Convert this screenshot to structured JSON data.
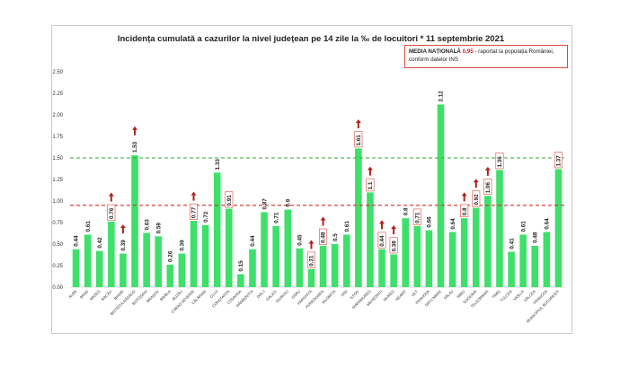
{
  "chart_data": {
    "type": "bar",
    "title": "Incidența cumulată a cazurilor la nivel județean pe 14 zile la ‰ de locuitori * 11 septembrie 2021",
    "legend_note": {
      "label": "MEDIA NAȚIONALĂ",
      "value": "0,95",
      "text_line1": " - raportat la populația României,",
      "text_line2": "conform datelor INS"
    },
    "ylim": [
      0,
      2.5
    ],
    "yticks": [
      "0.00",
      "0.25",
      "0.50",
      "0.75",
      "1.00",
      "1.25",
      "1.50",
      "1.75",
      "2.00",
      "2.25",
      "2.50"
    ],
    "grid": false,
    "reference_lines": [
      {
        "value": 1.5,
        "color": "#3aa63a",
        "style": "dashed"
      },
      {
        "value": 0.95,
        "color": "#d22b2b",
        "style": "dashed"
      }
    ],
    "bar_color": "#3ee06a",
    "arrow_color": "#b0221b",
    "categories": [
      "ALBA",
      "ARAD",
      "ARGEȘ",
      "BACĂU",
      "BIHOR",
      "BISTRIȚA-NĂSĂUD",
      "BOTOȘANI",
      "BRAȘOV",
      "BRĂILA",
      "BUZĂU",
      "CARAȘ-SEVERIN",
      "CĂLĂRAȘI",
      "CLUJ",
      "CONSTANȚA",
      "COVASNA",
      "DÂMBOVIȚA",
      "DOLJ",
      "GALAȚI",
      "GIURGIU",
      "GORJ",
      "HARGHITA",
      "HUNEDOARA",
      "IALOMIȚA",
      "IAȘI",
      "ILFOV",
      "MARAMUREȘ",
      "MEHEDINȚI",
      "MUREȘ",
      "NEAMȚ",
      "OLT",
      "PRAHOVA",
      "SATU MARE",
      "SĂLAJ",
      "SIBIU",
      "SUCEAVA",
      "TELEORMAN",
      "TIMIȘ",
      "TULCEA",
      "VASLUI",
      "VÂLCEA",
      "VRANCEA",
      "MUNICIPIUL BUCUREȘTI"
    ],
    "values": [
      0.44,
      0.61,
      0.42,
      0.76,
      0.39,
      1.53,
      0.63,
      0.59,
      0.26,
      0.39,
      0.77,
      0.72,
      1.33,
      0.91,
      0.15,
      0.44,
      0.87,
      0.71,
      0.9,
      0.45,
      0.21,
      0.48,
      0.5,
      0.61,
      1.61,
      1.1,
      0.44,
      0.38,
      0.8,
      0.71,
      0.66,
      2.12,
      0.64,
      0.8,
      0.92,
      1.06,
      1.36,
      0.41,
      0.61,
      0.48,
      0.64,
      1.37
    ],
    "labels": [
      "0.44",
      "0.61",
      "0.42",
      "0.76",
      "0.39",
      "1.53",
      "0.63",
      "0.59",
      "0.26",
      "0.39",
      "0.77",
      "0.72",
      "1.33",
      "0.91",
      "0.15",
      "0.44",
      "0.87",
      "0.71",
      "0.9",
      "0.45",
      "0.21",
      "0.48",
      "0.5",
      "0.61",
      "1.61",
      "1.1",
      "0.44",
      "0.38",
      "0.8",
      "0.71",
      "0.66",
      "2.12",
      "0.64",
      "0.8",
      "0.92",
      "1.06",
      "1.36",
      "0.41",
      "0.61",
      "0.48",
      "0.64",
      "1.37"
    ],
    "boxed_labels": [
      3,
      10,
      13,
      20,
      21,
      24,
      25,
      26,
      27,
      29,
      33,
      34,
      35,
      36,
      41
    ],
    "up_arrows": [
      3,
      4,
      5,
      10,
      20,
      21,
      24,
      25,
      26,
      27,
      33,
      34,
      35
    ]
  }
}
